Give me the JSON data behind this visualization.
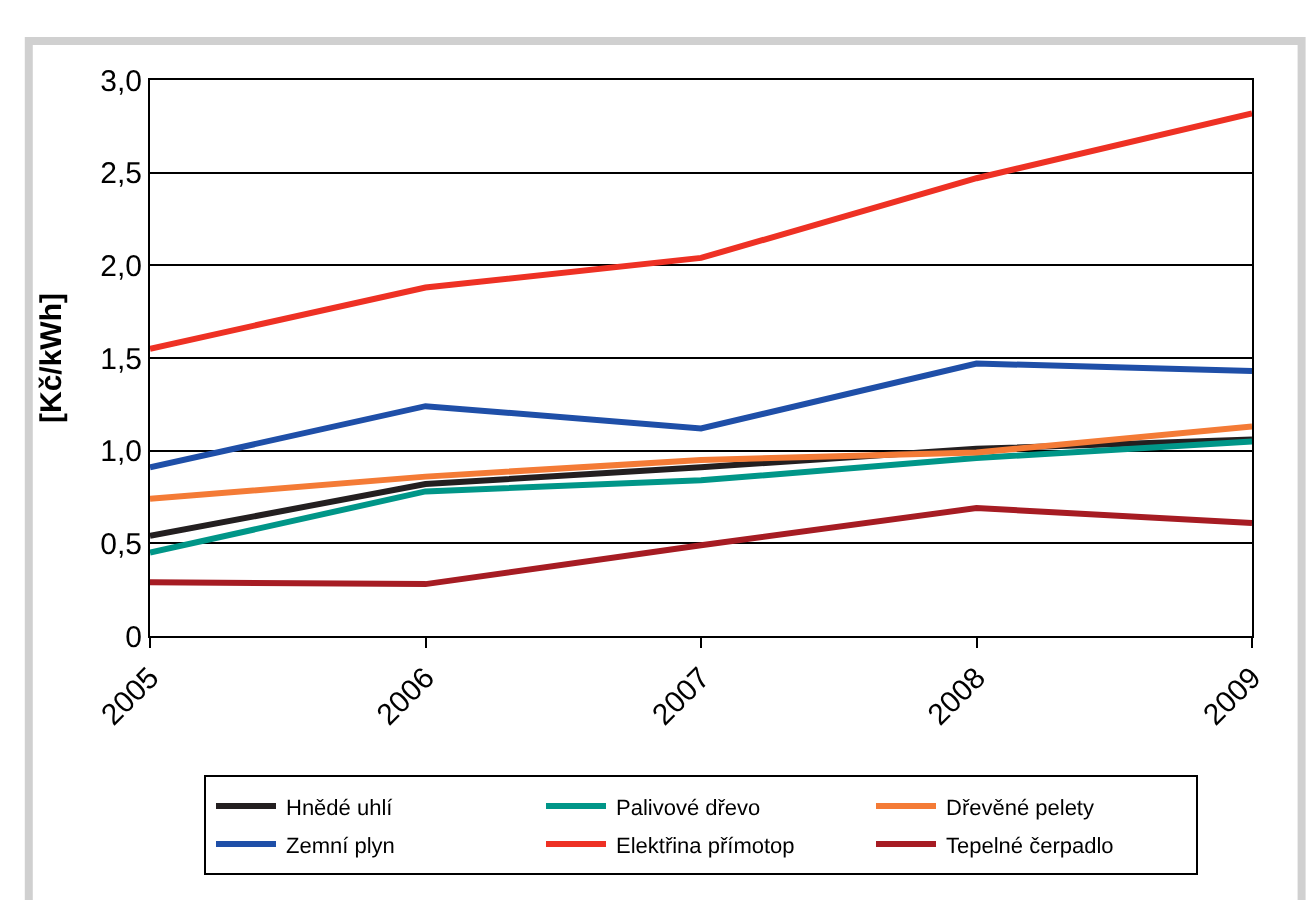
{
  "chart_data": {
    "type": "line",
    "ylabel": "[Kč/kWh]",
    "x": [
      2005,
      2006,
      2007,
      2008,
      2009
    ],
    "xlim": [
      2005,
      2009
    ],
    "xticks": [
      2005,
      2006,
      2007,
      2008,
      2009
    ],
    "ylim": [
      0,
      3
    ],
    "yticks": [
      {
        "value": 0,
        "label": "0"
      },
      {
        "value": 0.5,
        "label": "0,5"
      },
      {
        "value": 1,
        "label": "1,0"
      },
      {
        "value": 1.5,
        "label": "1,5"
      },
      {
        "value": 2,
        "label": "2,0"
      },
      {
        "value": 2.5,
        "label": "2,5"
      },
      {
        "value": 3,
        "label": "3,0"
      }
    ],
    "grid": "y",
    "legend": "bottom",
    "marker": "none",
    "line_style": "solid",
    "series": [
      {
        "name": "Hnědé uhlí",
        "color": "#231f20",
        "values": [
          0.54,
          0.82,
          0.91,
          1.01,
          1.06
        ]
      },
      {
        "name": "Palivové dřevo",
        "color": "#009688",
        "values": [
          0.45,
          0.78,
          0.84,
          0.96,
          1.05
        ]
      },
      {
        "name": "Dřevěné pelety",
        "color": "#f47b36",
        "values": [
          0.74,
          0.86,
          0.95,
          0.99,
          1.13
        ]
      },
      {
        "name": "Zemní plyn",
        "color": "#1f4fa8",
        "values": [
          0.91,
          1.24,
          1.12,
          1.47,
          1.43
        ]
      },
      {
        "name": "Elektřina přímotop",
        "color": "#ee3124",
        "values": [
          1.55,
          1.88,
          2.04,
          2.47,
          2.82
        ]
      },
      {
        "name": "Tepelné čerpadlo",
        "color": "#a61c23",
        "values": [
          0.29,
          0.28,
          0.49,
          0.69,
          0.61
        ]
      }
    ]
  }
}
